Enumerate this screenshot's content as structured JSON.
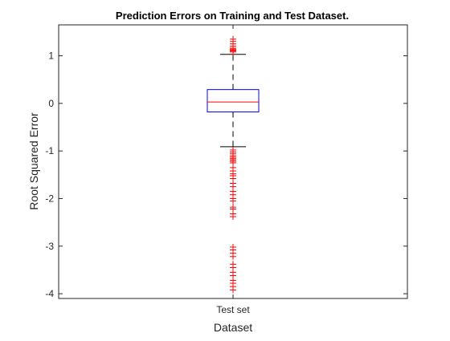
{
  "chart_data": {
    "type": "box",
    "title": "Prediction Errors on Training and Test Dataset.",
    "xlabel": "Dataset",
    "ylabel": "Root Squared Error",
    "categories": [
      "Test set"
    ],
    "ylim": [
      -4.1,
      1.65
    ],
    "yticks": [
      -4,
      -3,
      -2,
      -1,
      0,
      1
    ],
    "ytick_labels": [
      "-4",
      "-3",
      "-2",
      "-1",
      "0",
      "1"
    ],
    "grid": false,
    "box": {
      "median": 0.03,
      "q1": -0.18,
      "q3": 0.29,
      "whisker_low": -0.91,
      "whisker_high": 1.03
    },
    "outliers": [
      1.08,
      1.1,
      1.12,
      1.14,
      1.16,
      1.2,
      1.25,
      1.3,
      1.35,
      -0.98,
      -1.02,
      -1.06,
      -1.1,
      -1.13,
      -1.16,
      -1.19,
      -1.22,
      -1.25,
      -1.35,
      -1.42,
      -1.48,
      -1.52,
      -1.58,
      -1.68,
      -1.75,
      -1.85,
      -1.92,
      -2.0,
      -2.05,
      -2.18,
      -2.22,
      -2.32,
      -2.38,
      -3.02,
      -3.08,
      -3.15,
      -3.22,
      -3.38,
      -3.45,
      -3.55,
      -3.62,
      -3.72,
      -3.78,
      -3.85,
      -3.92
    ],
    "colors": {
      "box": "#0000ff",
      "median": "#ff0000",
      "whisker": "#000000",
      "outlier": "#ff0000",
      "axis": "#262626"
    }
  }
}
